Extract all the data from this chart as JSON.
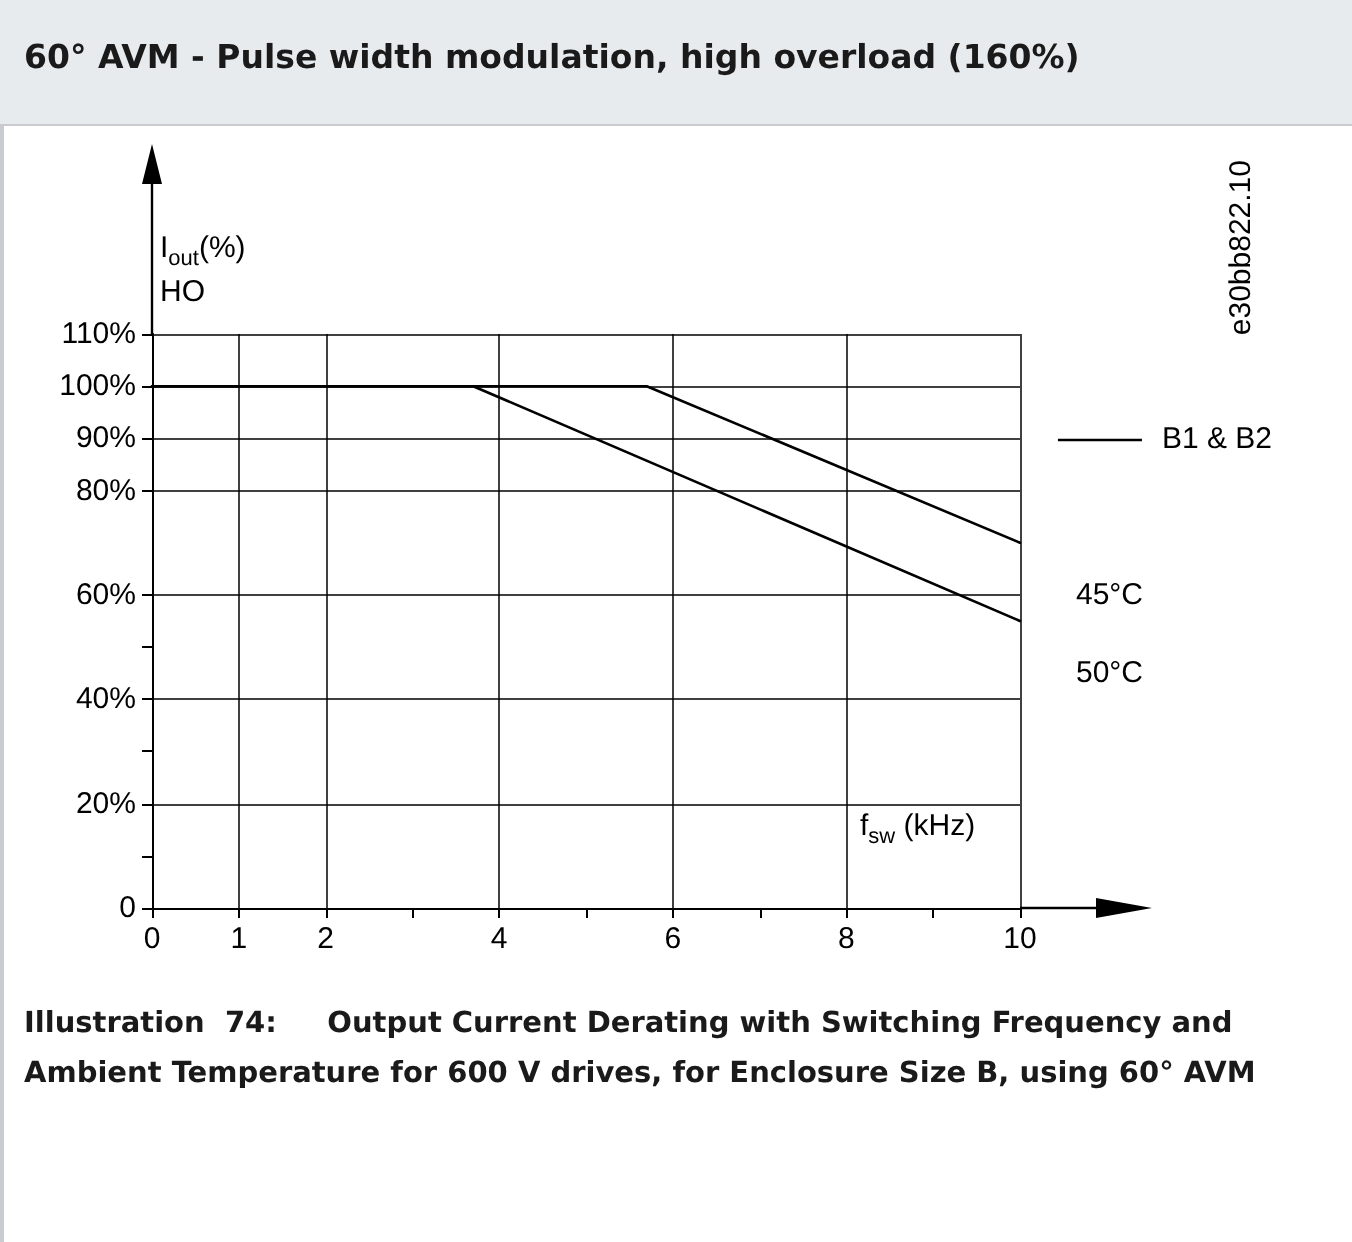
{
  "chart_data": {
    "type": "line",
    "title": "60° AVM - Pulse width modulation, high overload (160%)",
    "xlabel": "f$_{sw}$ (kHz)",
    "ylabel": "I$_{out}$(%)\nHO",
    "legend_title": "B1 & B2",
    "legend": "right",
    "annotations": [
      "e30bb822.10",
      "Illustration  74:     Output Current Derating with Switching Frequency and Ambient Temperature for 600 V drives, for Enclosure Size B, using 60° AVM"
    ],
    "series": [
      {
        "name": "45°C",
        "color": "#000000",
        "x": [
          0,
          5.7,
          10
        ],
        "values": [
          100,
          100,
          70
        ]
      },
      {
        "name": "50°C",
        "color": "#000000",
        "x": [
          0,
          3.7,
          10
        ],
        "values": [
          100,
          100,
          55
        ]
      }
    ],
    "xlim": [
      0,
      10
    ],
    "xticks": [
      0,
      1,
      2,
      {
        "value": 3,
        "label": null
      },
      4,
      {
        "value": 5,
        "label": null
      },
      6,
      {
        "value": 7,
        "label": null
      },
      8,
      {
        "value": 9,
        "label": null
      },
      10
    ],
    "ylim": [
      0,
      110
    ],
    "yticks": [
      0,
      {
        "value": 10,
        "label": null
      },
      {
        "value": 20,
        "label": "20%"
      },
      {
        "value": 30,
        "label": null
      },
      {
        "value": 40,
        "label": "40%"
      },
      {
        "value": 50,
        "label": null
      },
      {
        "value": 60,
        "label": "60%"
      },
      {
        "value": 80,
        "label": "80%"
      },
      {
        "value": 90,
        "label": "90%"
      },
      {
        "value": 100,
        "label": "100%"
      },
      {
        "value": 110,
        "label": "110%"
      }
    ],
    "grid": true,
    "line_style": "solid"
  }
}
